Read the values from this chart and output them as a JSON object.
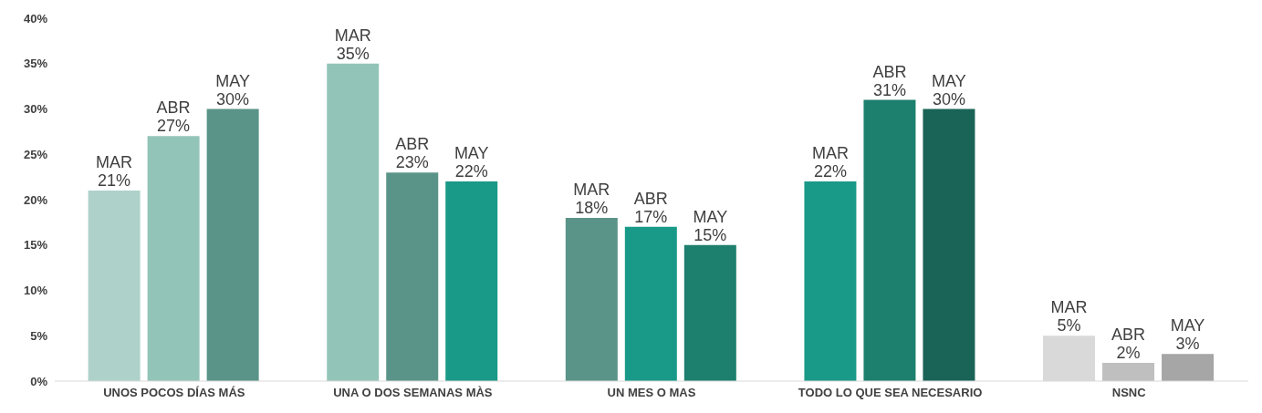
{
  "chart_data": {
    "type": "bar",
    "categories": [
      "UNOS POCOS DÍAS MÁS",
      "UNA O DOS SEMANAS MÀS",
      "UN MES O MAS",
      "TODO LO QUE SEA NECESARIO",
      "NSNC"
    ],
    "series": [
      {
        "name": "MAR",
        "colors": [
          "#aed2ca",
          "#93c4b8",
          "#5a9488",
          "#199a88",
          "#d9d9d9"
        ],
        "values": [
          21,
          35,
          18,
          22,
          5
        ],
        "value_labels": [
          "21%",
          "35%",
          "18%",
          "22%",
          "5%"
        ]
      },
      {
        "name": "ABR",
        "colors": [
          "#93c4b8",
          "#5a9488",
          "#199a88",
          "#1d7f6e",
          "#bfbfbf"
        ],
        "values": [
          27,
          23,
          17,
          31,
          2
        ],
        "value_labels": [
          "27%",
          "23%",
          "17%",
          "31%",
          "2%"
        ]
      },
      {
        "name": "MAY",
        "colors": [
          "#5a9488",
          "#199a88",
          "#1d7f6e",
          "#1a6357",
          "#a6a6a6"
        ],
        "values": [
          30,
          22,
          15,
          30,
          3
        ],
        "value_labels": [
          "30%",
          "22%",
          "15%",
          "30%",
          "3%"
        ]
      }
    ],
    "ylim": [
      0,
      40
    ],
    "yticks": [
      {
        "value": 0,
        "label": "0%"
      },
      {
        "value": 5,
        "label": "5%"
      },
      {
        "value": 10,
        "label": "10%"
      },
      {
        "value": 15,
        "label": "15%"
      },
      {
        "value": 20,
        "label": "20%"
      },
      {
        "value": 25,
        "label": "25%"
      },
      {
        "value": 30,
        "label": "30%"
      },
      {
        "value": 35,
        "label": "35%"
      },
      {
        "value": 40,
        "label": "40%"
      }
    ],
    "grid": false,
    "legend": false
  }
}
